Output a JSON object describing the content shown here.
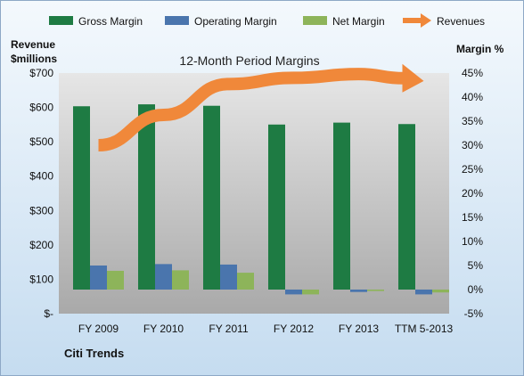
{
  "company": "Citi Trends",
  "chart_data": {
    "type": "bar",
    "title": "12-Month Period Margins",
    "left_axis_title": [
      "Revenue",
      "$millions"
    ],
    "right_axis_title": "Margin %",
    "categories": [
      "FY 2009",
      "FY 2010",
      "FY 2011",
      "FY 2012",
      "FY 2013",
      "TTM 5-2013"
    ],
    "left_ticks": [
      "$-",
      "$100",
      "$200",
      "$300",
      "$400",
      "$500",
      "$600",
      "$700"
    ],
    "right_ticks": [
      "-5%",
      "0%",
      "5%",
      "10%",
      "15%",
      "20%",
      "25%",
      "30%",
      "35%",
      "40%",
      "45%"
    ],
    "ylim_margin": [
      -5,
      45
    ],
    "ylim_revenue": [
      0,
      700
    ],
    "series": [
      {
        "name": "Gross Margin",
        "axis": "right",
        "type": "bar",
        "color": "#1e7b43",
        "values": [
          38.1,
          38.5,
          38.2,
          34.3,
          34.7,
          34.4
        ]
      },
      {
        "name": "Operating Margin",
        "axis": "right",
        "type": "bar",
        "color": "#4a75ad",
        "values": [
          5.0,
          5.3,
          5.2,
          -1.0,
          -0.5,
          -1.0
        ]
      },
      {
        "name": "Net Margin",
        "axis": "right",
        "type": "bar",
        "color": "#8db45a",
        "values": [
          3.9,
          4.0,
          3.5,
          -1.0,
          -0.3,
          -0.6
        ]
      },
      {
        "name": "Revenues",
        "axis": "left",
        "type": "trend-arrow",
        "color": "#f0883a",
        "values": [
          490,
          578,
          668,
          686,
          697,
          677
        ]
      }
    ],
    "legend_position": "top",
    "grid": false,
    "plot_background_gradient": [
      "#e6e6e6",
      "#a9a9a9"
    ],
    "chart_background_gradient": [
      "#f4f9fd",
      "#c5dcf0"
    ]
  }
}
